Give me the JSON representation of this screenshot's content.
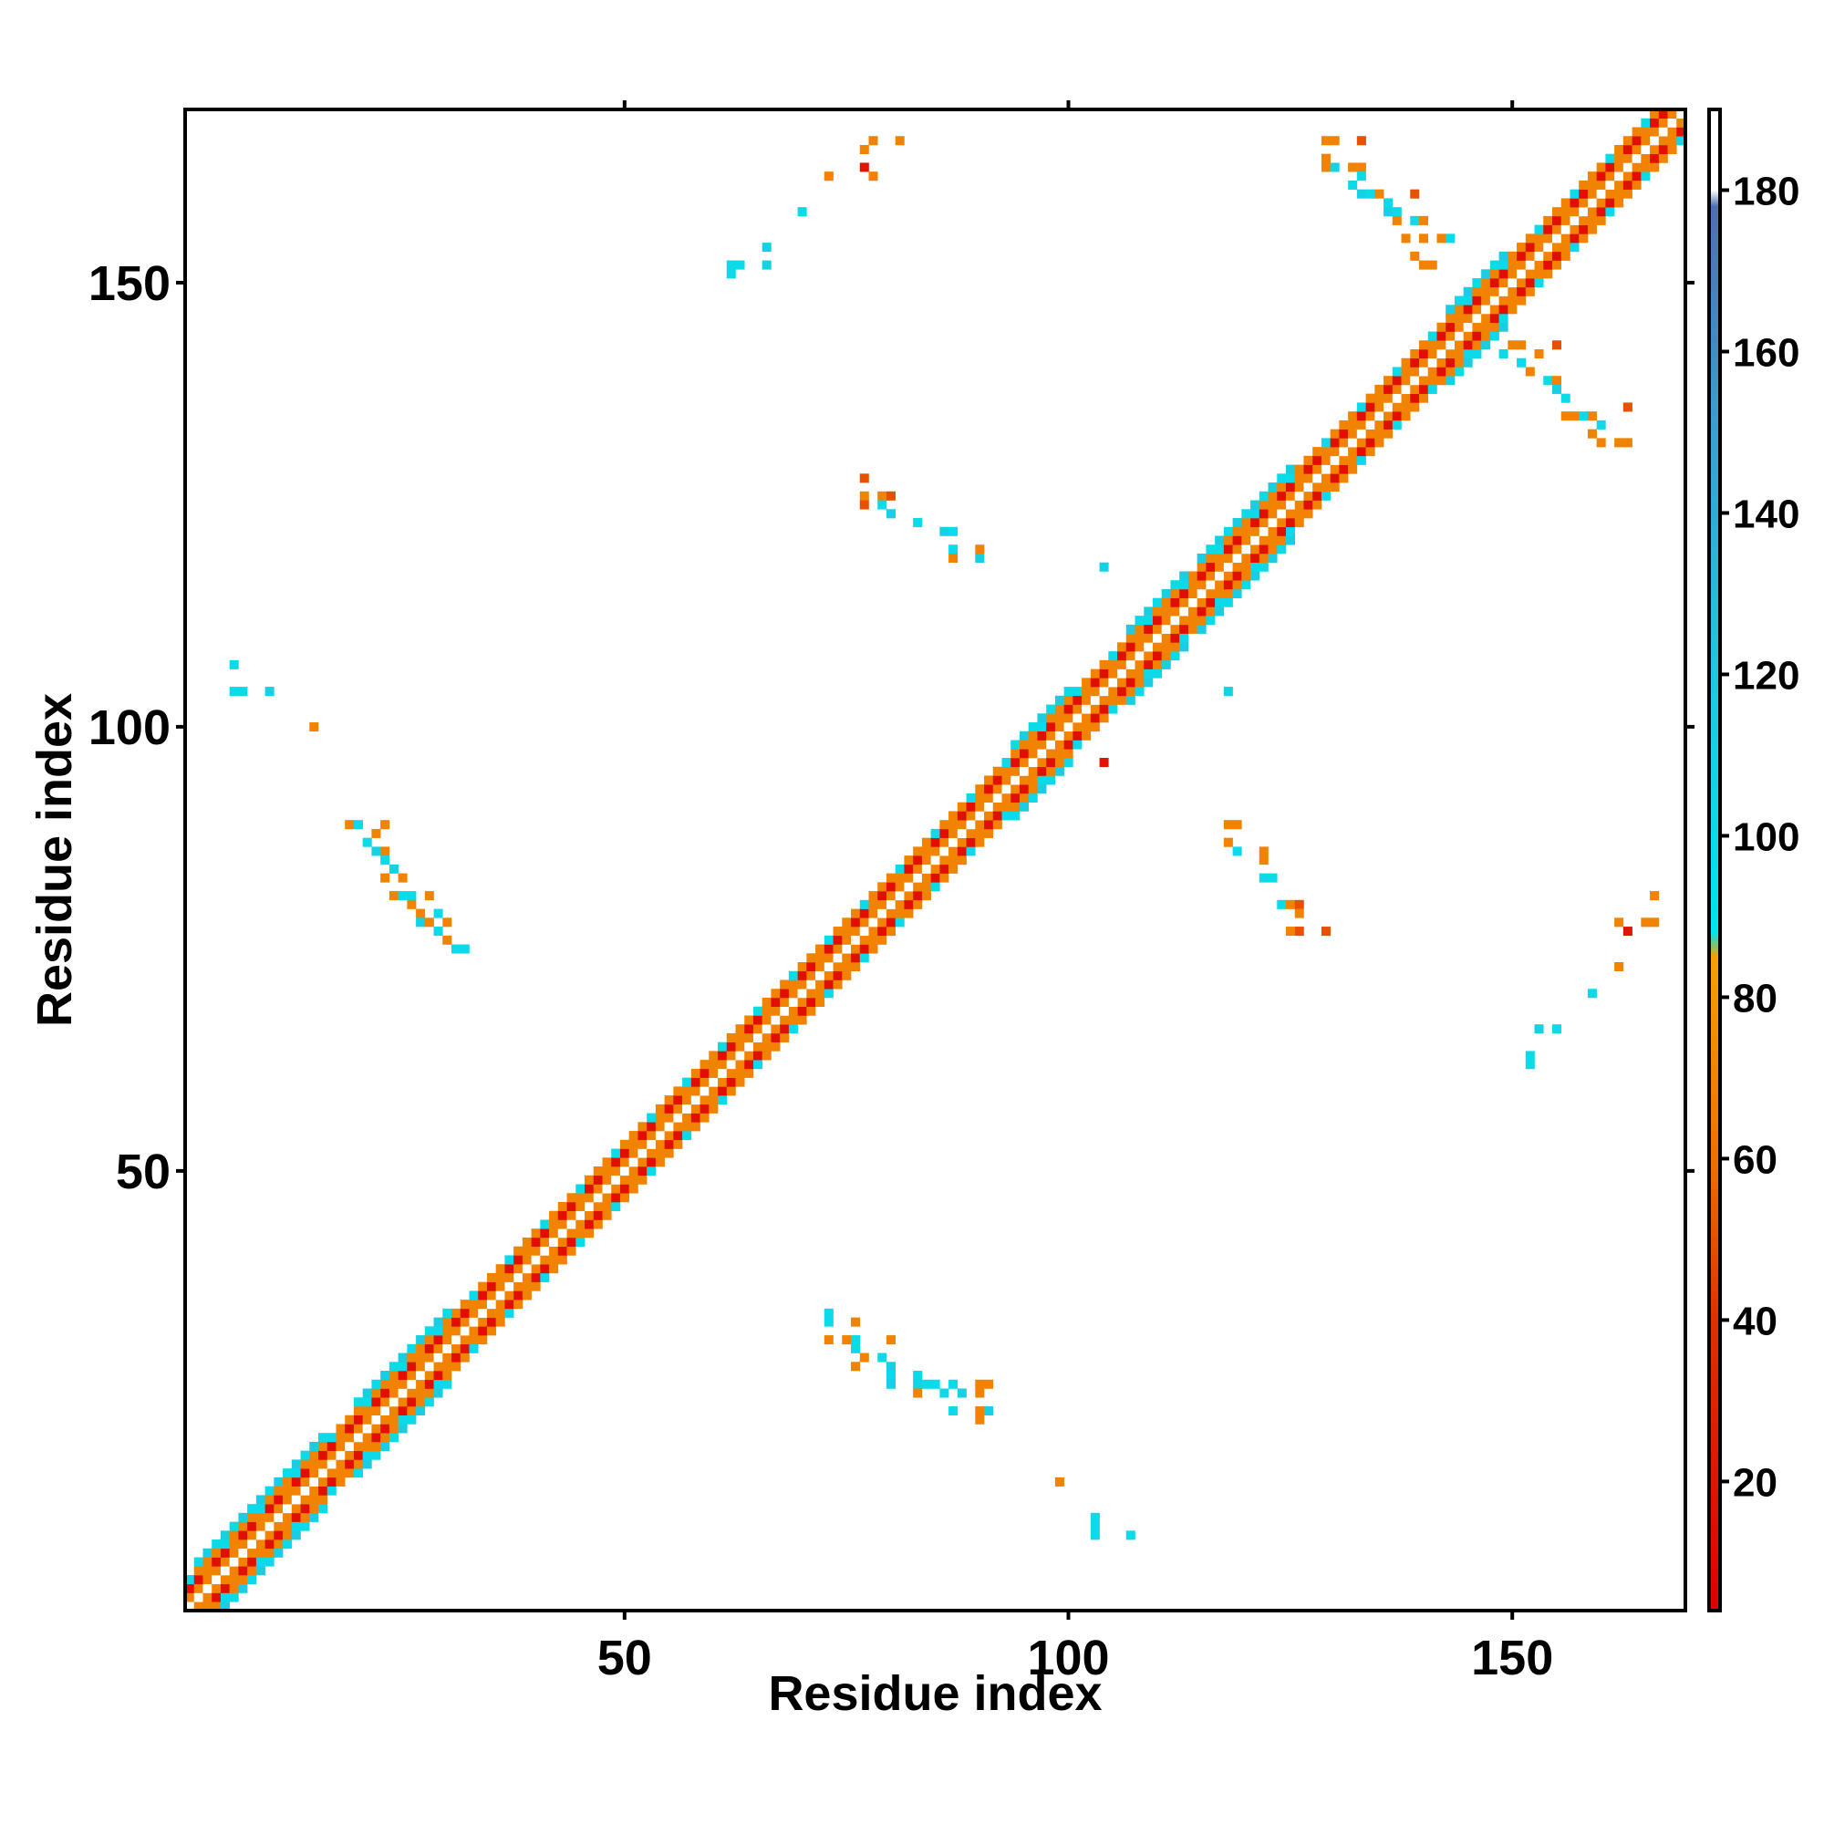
{
  "chart_data": {
    "type": "heatmap",
    "title": "",
    "xlabel": "Residue index",
    "ylabel": "Residue index",
    "xlim": [
      1,
      169
    ],
    "ylim": [
      1,
      169
    ],
    "xticks": [
      50,
      100,
      150
    ],
    "yticks": [
      50,
      100,
      150
    ],
    "colorbar": {
      "range": [
        4,
        190
      ],
      "ticks": [
        20,
        40,
        60,
        80,
        100,
        120,
        140,
        160,
        180
      ],
      "stops": [
        {
          "value": 4,
          "color": "#e00000"
        },
        {
          "value": 40,
          "color": "#e03000"
        },
        {
          "value": 60,
          "color": "#f07000"
        },
        {
          "value": 85,
          "color": "#f5a000"
        },
        {
          "value": 88,
          "color": "#00e5ee"
        },
        {
          "value": 120,
          "color": "#20c8e0"
        },
        {
          "value": 150,
          "color": "#3aa0d0"
        },
        {
          "value": 178,
          "color": "#5070b0"
        },
        {
          "value": 180,
          "color": "#ffffff"
        },
        {
          "value": 190,
          "color": "#ffffff"
        }
      ]
    },
    "diagonal_band": {
      "from": 1,
      "to": 169,
      "half_width": 3
    },
    "diagonal_wide_regions": [
      {
        "from": 2,
        "to": 16,
        "half_width": 4
      },
      {
        "from": 20,
        "to": 30,
        "half_width": 4
      },
      {
        "from": 94,
        "to": 100,
        "half_width": 4
      },
      {
        "from": 107,
        "to": 113,
        "half_width": 4
      },
      {
        "from": 115,
        "to": 125,
        "half_width": 4
      },
      {
        "from": 143,
        "to": 149,
        "half_width": 4
      }
    ],
    "contacts": [
      {
        "x": 19,
        "y": 89,
        "v": 70
      },
      {
        "x": 20,
        "y": 89,
        "v": 100
      },
      {
        "x": 22,
        "y": 88,
        "v": 70
      },
      {
        "x": 23,
        "y": 89,
        "v": 70
      },
      {
        "x": 21,
        "y": 87,
        "v": 100
      },
      {
        "x": 22,
        "y": 86,
        "v": 110
      },
      {
        "x": 23,
        "y": 86,
        "v": 70
      },
      {
        "x": 23,
        "y": 85,
        "v": 100
      },
      {
        "x": 24,
        "y": 84,
        "v": 110
      },
      {
        "x": 23,
        "y": 83,
        "v": 70
      },
      {
        "x": 25,
        "y": 83,
        "v": 70
      },
      {
        "x": 24,
        "y": 81,
        "v": 70
      },
      {
        "x": 25,
        "y": 81,
        "v": 100
      },
      {
        "x": 26,
        "y": 81,
        "v": 100
      },
      {
        "x": 28,
        "y": 81,
        "v": 70
      },
      {
        "x": 26,
        "y": 80,
        "v": 70
      },
      {
        "x": 27,
        "y": 79,
        "v": 70
      },
      {
        "x": 29,
        "y": 79,
        "v": 100
      },
      {
        "x": 27,
        "y": 78,
        "v": 110
      },
      {
        "x": 28,
        "y": 78,
        "v": 70
      },
      {
        "x": 30,
        "y": 78,
        "v": 70
      },
      {
        "x": 29,
        "y": 77,
        "v": 100
      },
      {
        "x": 30,
        "y": 76,
        "v": 70
      },
      {
        "x": 31,
        "y": 75,
        "v": 100
      },
      {
        "x": 32,
        "y": 75,
        "v": 100
      },
      {
        "x": 6,
        "y": 107,
        "v": 100
      },
      {
        "x": 6,
        "y": 104,
        "v": 100
      },
      {
        "x": 7,
        "y": 104,
        "v": 100
      },
      {
        "x": 10,
        "y": 104,
        "v": 110
      },
      {
        "x": 15,
        "y": 100,
        "v": 70
      },
      {
        "x": 62,
        "y": 152,
        "v": 100
      },
      {
        "x": 63,
        "y": 152,
        "v": 100
      },
      {
        "x": 62,
        "y": 151,
        "v": 100
      },
      {
        "x": 66,
        "y": 152,
        "v": 110
      },
      {
        "x": 66,
        "y": 154,
        "v": 110
      },
      {
        "x": 70,
        "y": 158,
        "v": 100
      },
      {
        "x": 73,
        "y": 162,
        "v": 70
      },
      {
        "x": 77,
        "y": 163,
        "v": 20
      },
      {
        "x": 78,
        "y": 162,
        "v": 70
      },
      {
        "x": 77,
        "y": 165,
        "v": 70
      },
      {
        "x": 78,
        "y": 166,
        "v": 70
      },
      {
        "x": 81,
        "y": 166,
        "v": 70
      },
      {
        "x": 77,
        "y": 128,
        "v": 50
      },
      {
        "x": 77,
        "y": 126,
        "v": 70
      },
      {
        "x": 77,
        "y": 125,
        "v": 50
      },
      {
        "x": 79,
        "y": 126,
        "v": 70
      },
      {
        "x": 80,
        "y": 126,
        "v": 50
      },
      {
        "x": 79,
        "y": 125,
        "v": 100
      },
      {
        "x": 80,
        "y": 124,
        "v": 110
      },
      {
        "x": 83,
        "y": 123,
        "v": 100
      },
      {
        "x": 86,
        "y": 122,
        "v": 110
      },
      {
        "x": 87,
        "y": 122,
        "v": 100
      },
      {
        "x": 87,
        "y": 120,
        "v": 100
      },
      {
        "x": 87,
        "y": 119,
        "v": 70
      },
      {
        "x": 90,
        "y": 119,
        "v": 110
      },
      {
        "x": 90,
        "y": 120,
        "v": 70
      },
      {
        "x": 73,
        "y": 34,
        "v": 100
      },
      {
        "x": 73,
        "y": 33,
        "v": 100
      },
      {
        "x": 76,
        "y": 33,
        "v": 70
      },
      {
        "x": 73,
        "y": 31,
        "v": 70
      },
      {
        "x": 75,
        "y": 31,
        "v": 70
      },
      {
        "x": 76,
        "y": 31,
        "v": 100
      },
      {
        "x": 80,
        "y": 31,
        "v": 70
      },
      {
        "x": 76,
        "y": 30,
        "v": 100
      },
      {
        "x": 77,
        "y": 29,
        "v": 70
      },
      {
        "x": 79,
        "y": 29,
        "v": 100
      },
      {
        "x": 76,
        "y": 28,
        "v": 70
      },
      {
        "x": 80,
        "y": 28,
        "v": 110
      },
      {
        "x": 80,
        "y": 27,
        "v": 100
      },
      {
        "x": 80,
        "y": 26,
        "v": 110
      },
      {
        "x": 83,
        "y": 27,
        "v": 100
      },
      {
        "x": 83,
        "y": 26,
        "v": 110
      },
      {
        "x": 84,
        "y": 26,
        "v": 100
      },
      {
        "x": 85,
        "y": 26,
        "v": 100
      },
      {
        "x": 87,
        "y": 26,
        "v": 100
      },
      {
        "x": 83,
        "y": 25,
        "v": 70
      },
      {
        "x": 86,
        "y": 25,
        "v": 100
      },
      {
        "x": 88,
        "y": 25,
        "v": 110
      },
      {
        "x": 90,
        "y": 26,
        "v": 70
      },
      {
        "x": 91,
        "y": 26,
        "v": 70
      },
      {
        "x": 90,
        "y": 25,
        "v": 70
      },
      {
        "x": 87,
        "y": 23,
        "v": 100
      },
      {
        "x": 90,
        "y": 23,
        "v": 70
      },
      {
        "x": 91,
        "y": 23,
        "v": 110
      },
      {
        "x": 90,
        "y": 22,
        "v": 70
      },
      {
        "x": 99,
        "y": 15,
        "v": 70
      },
      {
        "x": 103,
        "y": 11,
        "v": 100
      },
      {
        "x": 103,
        "y": 10,
        "v": 100
      },
      {
        "x": 103,
        "y": 9,
        "v": 100
      },
      {
        "x": 107,
        "y": 9,
        "v": 100
      },
      {
        "x": 104,
        "y": 118,
        "v": 110
      },
      {
        "x": 118,
        "y": 104,
        "v": 110
      },
      {
        "x": 104,
        "y": 96,
        "v": 20
      },
      {
        "x": 119,
        "y": 89,
        "v": 70
      },
      {
        "x": 118,
        "y": 89,
        "v": 70
      },
      {
        "x": 118,
        "y": 87,
        "v": 70
      },
      {
        "x": 119,
        "y": 86,
        "v": 100
      },
      {
        "x": 122,
        "y": 86,
        "v": 70
      },
      {
        "x": 122,
        "y": 85,
        "v": 70
      },
      {
        "x": 122,
        "y": 83,
        "v": 100
      },
      {
        "x": 123,
        "y": 83,
        "v": 100
      },
      {
        "x": 124,
        "y": 80,
        "v": 100
      },
      {
        "x": 125,
        "y": 80,
        "v": 70
      },
      {
        "x": 126,
        "y": 80,
        "v": 50
      },
      {
        "x": 126,
        "y": 79,
        "v": 70
      },
      {
        "x": 126,
        "y": 77,
        "v": 50
      },
      {
        "x": 125,
        "y": 77,
        "v": 70
      },
      {
        "x": 129,
        "y": 77,
        "v": 50
      },
      {
        "x": 152,
        "y": 62,
        "v": 100
      },
      {
        "x": 152,
        "y": 63,
        "v": 100
      },
      {
        "x": 153,
        "y": 66,
        "v": 110
      },
      {
        "x": 155,
        "y": 66,
        "v": 100
      },
      {
        "x": 159,
        "y": 70,
        "v": 100
      },
      {
        "x": 162,
        "y": 73,
        "v": 70
      },
      {
        "x": 163,
        "y": 77,
        "v": 20
      },
      {
        "x": 162,
        "y": 78,
        "v": 70
      },
      {
        "x": 165,
        "y": 78,
        "v": 70
      },
      {
        "x": 166,
        "y": 78,
        "v": 70
      },
      {
        "x": 166,
        "y": 81,
        "v": 70
      },
      {
        "x": 129,
        "y": 166,
        "v": 70
      },
      {
        "x": 130,
        "y": 166,
        "v": 70
      },
      {
        "x": 133,
        "y": 166,
        "v": 50
      },
      {
        "x": 129,
        "y": 164,
        "v": 70
      },
      {
        "x": 129,
        "y": 163,
        "v": 70
      },
      {
        "x": 130,
        "y": 163,
        "v": 110
      },
      {
        "x": 132,
        "y": 163,
        "v": 70
      },
      {
        "x": 133,
        "y": 163,
        "v": 70
      },
      {
        "x": 133,
        "y": 162,
        "v": 100
      },
      {
        "x": 132,
        "y": 161,
        "v": 100
      },
      {
        "x": 133,
        "y": 160,
        "v": 110
      },
      {
        "x": 134,
        "y": 160,
        "v": 100
      },
      {
        "x": 135,
        "y": 160,
        "v": 70
      },
      {
        "x": 136,
        "y": 159,
        "v": 100
      },
      {
        "x": 139,
        "y": 160,
        "v": 50
      },
      {
        "x": 136,
        "y": 158,
        "v": 110
      },
      {
        "x": 137,
        "y": 158,
        "v": 100
      },
      {
        "x": 137,
        "y": 157,
        "v": 70
      },
      {
        "x": 139,
        "y": 157,
        "v": 100
      },
      {
        "x": 140,
        "y": 157,
        "v": 70
      },
      {
        "x": 138,
        "y": 155,
        "v": 70
      },
      {
        "x": 140,
        "y": 155,
        "v": 70
      },
      {
        "x": 142,
        "y": 155,
        "v": 70
      },
      {
        "x": 143,
        "y": 155,
        "v": 100
      },
      {
        "x": 139,
        "y": 153,
        "v": 70
      },
      {
        "x": 140,
        "y": 152,
        "v": 70
      },
      {
        "x": 141,
        "y": 152,
        "v": 70
      },
      {
        "x": 150,
        "y": 143,
        "v": 70
      },
      {
        "x": 151,
        "y": 143,
        "v": 70
      },
      {
        "x": 149,
        "y": 142,
        "v": 100
      },
      {
        "x": 151,
        "y": 141,
        "v": 100
      },
      {
        "x": 153,
        "y": 142,
        "v": 70
      },
      {
        "x": 155,
        "y": 143,
        "v": 50
      },
      {
        "x": 152,
        "y": 140,
        "v": 70
      },
      {
        "x": 154,
        "y": 139,
        "v": 100
      },
      {
        "x": 155,
        "y": 139,
        "v": 70
      },
      {
        "x": 155,
        "y": 138,
        "v": 110
      },
      {
        "x": 156,
        "y": 137,
        "v": 100
      },
      {
        "x": 156,
        "y": 135,
        "v": 70
      },
      {
        "x": 157,
        "y": 135,
        "v": 70
      },
      {
        "x": 158,
        "y": 135,
        "v": 100
      },
      {
        "x": 159,
        "y": 135,
        "v": 70
      },
      {
        "x": 163,
        "y": 136,
        "v": 50
      },
      {
        "x": 160,
        "y": 134,
        "v": 100
      },
      {
        "x": 159,
        "y": 133,
        "v": 70
      },
      {
        "x": 160,
        "y": 132,
        "v": 70
      },
      {
        "x": 162,
        "y": 132,
        "v": 70
      },
      {
        "x": 163,
        "y": 132,
        "v": 70
      }
    ]
  }
}
